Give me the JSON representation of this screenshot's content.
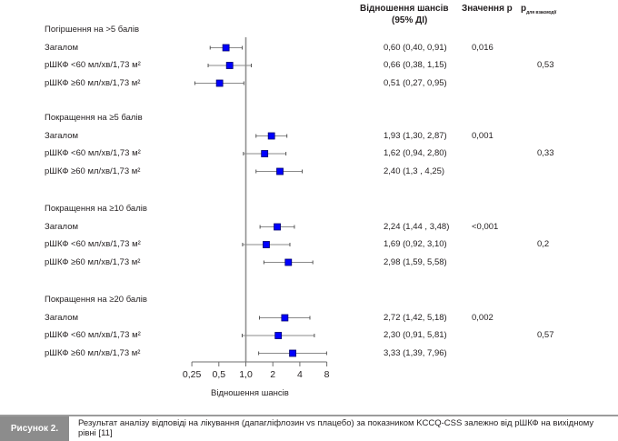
{
  "header": {
    "or_line1": "Відношення шансів",
    "or_line2": "(95% ДІ)",
    "p_value": "Значення p",
    "p_interaction_main": "р",
    "p_interaction_sub": "для взаємодії"
  },
  "chart_data": {
    "type": "forest",
    "xscale": "log2",
    "xlabel": "Відношення шансів",
    "xlim": [
      0.25,
      8
    ],
    "reference_line": 1.0,
    "x_ticks": [
      0.25,
      0.5,
      1.0,
      2,
      4,
      8
    ],
    "x_tick_labels": [
      "0,25",
      "0,5",
      "1,0",
      "2",
      "4",
      "8"
    ],
    "marker_color": "#0000ff",
    "whisker_color": "#8a8a8a",
    "groups": [
      {
        "title": "Погіршення на >5 балів",
        "p_interaction": "0,53",
        "rows": [
          {
            "label": "Загалом",
            "or": 0.6,
            "lo": 0.4,
            "hi": 0.91,
            "text": "0,60 (0,40, 0,91)",
            "p": "0,016"
          },
          {
            "label": "рШКФ <60 мл/хв/1,73 м²",
            "or": 0.66,
            "lo": 0.38,
            "hi": 1.15,
            "text": "0,66 (0,38, 1,15)",
            "p": ""
          },
          {
            "label": "рШКФ ≥60 мл/хв/1,73 м²",
            "or": 0.51,
            "lo": 0.27,
            "hi": 0.95,
            "text": "0,51 (0,27, 0,95)",
            "p": ""
          }
        ]
      },
      {
        "title": "Покращення на ≥5 балів",
        "p_interaction": "0,33",
        "rows": [
          {
            "label": "Загалом",
            "or": 1.93,
            "lo": 1.3,
            "hi": 2.87,
            "text": "1,93 (1,30, 2,87)",
            "p": "0,001"
          },
          {
            "label": "рШКФ <60 мл/хв/1,73 м²",
            "or": 1.62,
            "lo": 0.94,
            "hi": 2.8,
            "text": "1,62 (0,94, 2,80)",
            "p": ""
          },
          {
            "label": "рШКФ ≥60 мл/хв/1,73 м²",
            "or": 2.4,
            "lo": 1.3,
            "hi": 4.25,
            "text": "2,40 (1,3 , 4,25)",
            "p": ""
          }
        ]
      },
      {
        "title": "Покращення на ≥10 балів",
        "p_interaction": "0,2",
        "rows": [
          {
            "label": "Загалом",
            "or": 2.24,
            "lo": 1.44,
            "hi": 3.48,
            "text": "2,24 (1,44 , 3,48)",
            "p": "<0,001"
          },
          {
            "label": "рШКФ <60 мл/хв/1,73 м²",
            "or": 1.69,
            "lo": 0.92,
            "hi": 3.1,
            "text": "1,69 (0,92, 3,10)",
            "p": ""
          },
          {
            "label": "рШКФ ≥60 мл/хв/1,73 м²",
            "or": 2.98,
            "lo": 1.59,
            "hi": 5.58,
            "text": "2,98 (1,59, 5,58)",
            "p": ""
          }
        ]
      },
      {
        "title": "Покращення на ≥20 балів",
        "p_interaction": "0,57",
        "rows": [
          {
            "label": "Загалом",
            "or": 2.72,
            "lo": 1.42,
            "hi": 5.18,
            "text": "2,72 (1,42, 5,18)",
            "p": "0,002"
          },
          {
            "label": "рШКФ <60 мл/хв/1,73 м²",
            "or": 2.3,
            "lo": 0.91,
            "hi": 5.81,
            "text": "2,30 (0,91, 5,81)",
            "p": ""
          },
          {
            "label": "рШКФ ≥60 мл/хв/1,73 м²",
            "or": 3.33,
            "lo": 1.39,
            "hi": 7.96,
            "text": "3,33 (1,39, 7,96)",
            "p": ""
          }
        ]
      }
    ]
  },
  "caption": {
    "tag": "Рисунок 2.",
    "text": "Результат аналізу відповіді на лікування (дапагліфлозин vs плацебо) за показником KCCQ-CSS залежно від рШКФ на вихідному рівні [11]"
  }
}
